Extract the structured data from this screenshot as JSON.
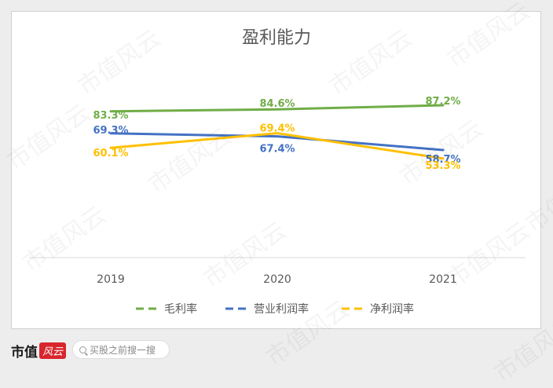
{
  "chart_data": {
    "type": "line",
    "title": "盈利能力",
    "categories": [
      "2019",
      "2020",
      "2021"
    ],
    "series": [
      {
        "name": "毛利率",
        "values": [
          83.3,
          84.6,
          87.2
        ],
        "labels": [
          "83.3%",
          "84.6%",
          "87.2%"
        ],
        "color": "#70ad47"
      },
      {
        "name": "营业利润率",
        "values": [
          69.3,
          67.4,
          58.7
        ],
        "labels": [
          "69.3%",
          "67.4%",
          "58.7%"
        ],
        "color": "#4472c4"
      },
      {
        "name": "净利润率",
        "values": [
          60.1,
          69.4,
          53.3
        ],
        "labels": [
          "60.1%",
          "69.4%",
          "53.3%"
        ],
        "color": "#ffc000"
      }
    ],
    "legend_position": "bottom",
    "grid": false
  },
  "watermark": {
    "text": "市值风云",
    "color": "rgba(0,0,0,0.045)"
  },
  "footer": {
    "logo_text": "市值",
    "logo_badge": "风云",
    "search_placeholder": "买股之前搜一搜",
    "icon": "search-icon"
  }
}
